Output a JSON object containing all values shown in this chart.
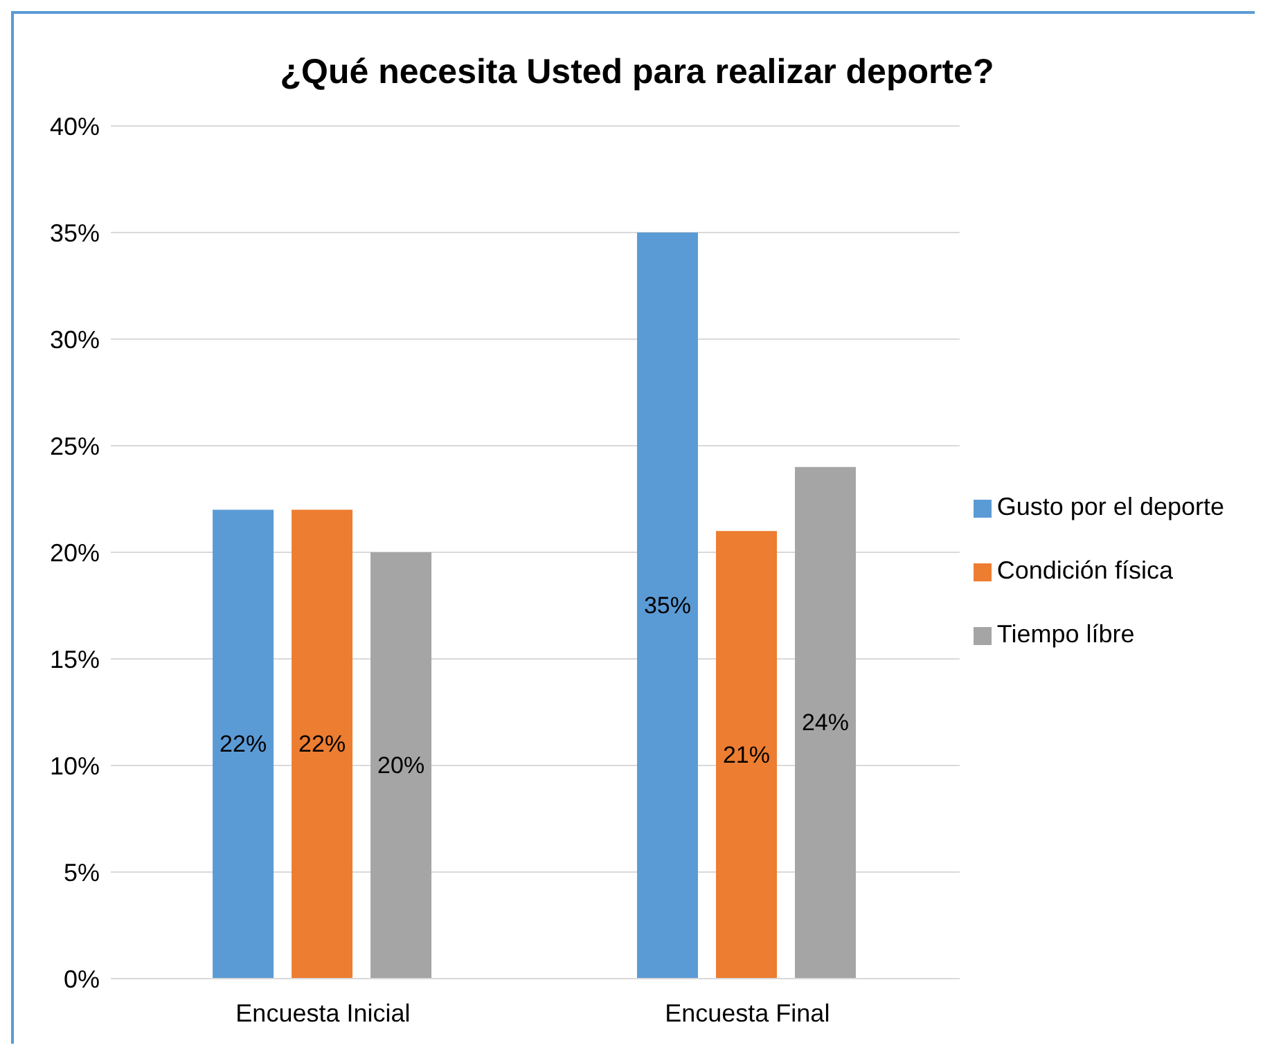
{
  "chart_data": {
    "type": "bar",
    "title": "¿Qué necesita Usted para realizar deporte?",
    "categories": [
      "Encuesta Inicial",
      "Encuesta Final"
    ],
    "series": [
      {
        "name": "Gusto por el deporte",
        "color": "#5b9bd5",
        "values": [
          22,
          35
        ],
        "value_labels": [
          "22%",
          "35%"
        ]
      },
      {
        "name": "Condición física",
        "color": "#ed7d31",
        "values": [
          22,
          21
        ],
        "value_labels": [
          "22%",
          "21%"
        ]
      },
      {
        "name": "Tiempo líbre",
        "color": "#a5a5a5",
        "values": [
          20,
          24
        ],
        "value_labels": [
          "20%",
          "24%"
        ]
      }
    ],
    "ylim": [
      0,
      40
    ],
    "yticks": [
      {
        "value": 0,
        "label": "0%"
      },
      {
        "value": 5,
        "label": "5%"
      },
      {
        "value": 10,
        "label": "10%"
      },
      {
        "value": 15,
        "label": "15%"
      },
      {
        "value": 20,
        "label": "20%"
      },
      {
        "value": 25,
        "label": "25%"
      },
      {
        "value": 30,
        "label": "30%"
      },
      {
        "value": 35,
        "label": "35%"
      },
      {
        "value": 40,
        "label": "40%"
      }
    ],
    "grid": "y",
    "legend": "right"
  }
}
